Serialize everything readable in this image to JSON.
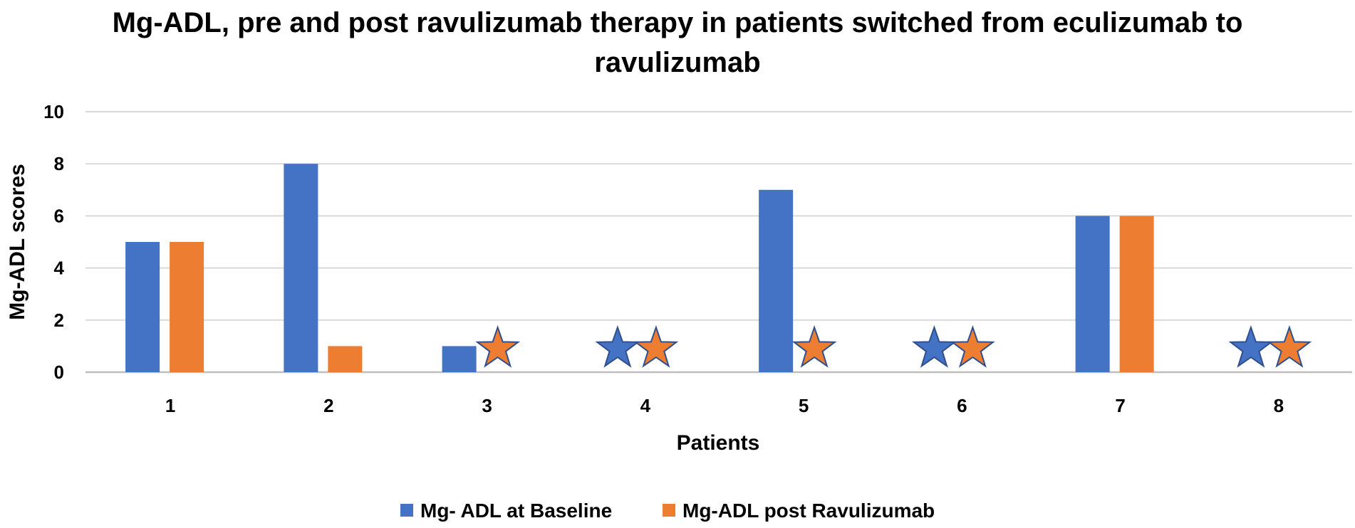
{
  "chart_data": {
    "type": "bar",
    "title_lines": [
      "Mg-ADL, pre and post ravulizumab therapy in patients switched from eculizumab to",
      "ravulizumab"
    ],
    "xlabel": "Patients",
    "ylabel": "Mg-ADL scores",
    "ylim": [
      0,
      10
    ],
    "yticks": [
      0,
      2,
      4,
      6,
      8,
      10
    ],
    "grid": true,
    "legend_position": "bottom",
    "categories": [
      "1",
      "2",
      "3",
      "4",
      "5",
      "6",
      "7",
      "8"
    ],
    "series": [
      {
        "name": "Mg- ADL at Baseline",
        "color": "#4472C4",
        "values": [
          5,
          8,
          1,
          0,
          7,
          0,
          6,
          0
        ],
        "star_markers": [
          false,
          false,
          false,
          true,
          false,
          true,
          false,
          true
        ]
      },
      {
        "name": "Mg-ADL post Ravulizumab",
        "color": "#ED7D31",
        "values": [
          5,
          1,
          0,
          0,
          0,
          0,
          6,
          0
        ],
        "star_markers": [
          false,
          false,
          true,
          true,
          true,
          true,
          false,
          true
        ]
      }
    ]
  }
}
